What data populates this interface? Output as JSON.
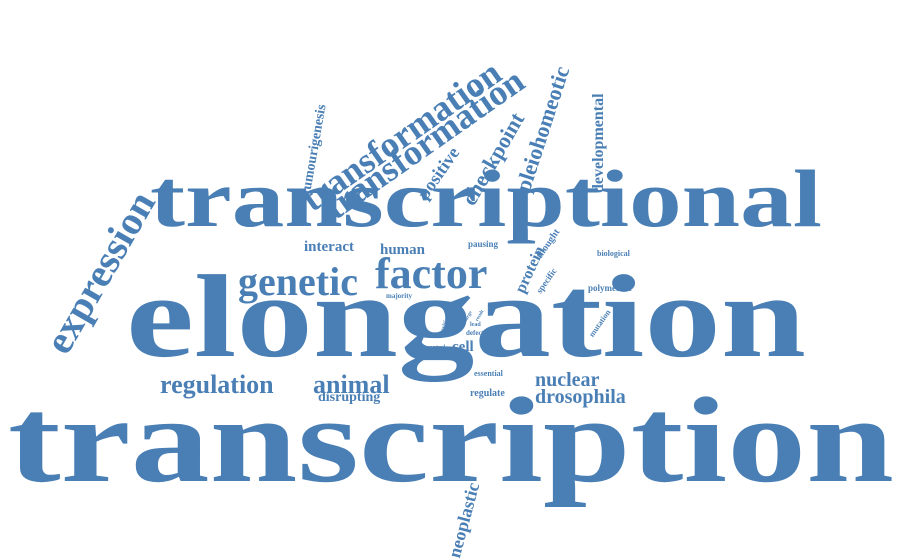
{
  "color": "#4a7fb5",
  "words": [
    {
      "text": "transcription",
      "size": 122,
      "rotate": 0
    },
    {
      "text": "elongation",
      "size": 118,
      "rotate": 0
    },
    {
      "text": "transcriptional",
      "size": 82,
      "rotate": 0
    },
    {
      "text": "factor",
      "size": 44,
      "rotate": 0
    },
    {
      "text": "genetic",
      "size": 40,
      "rotate": 0
    },
    {
      "text": "expression",
      "size": 40,
      "rotate": -60
    },
    {
      "text": "transformation",
      "size": 36,
      "rotate": -35
    },
    {
      "text": "transformation",
      "size": 36,
      "rotate": -35
    },
    {
      "text": "regulation",
      "size": 26,
      "rotate": 0
    },
    {
      "text": "animal",
      "size": 26,
      "rotate": 0
    },
    {
      "text": "nuclear",
      "size": 20,
      "rotate": 0
    },
    {
      "text": "drosophila",
      "size": 20,
      "rotate": 0
    },
    {
      "text": "checkpoint",
      "size": 22,
      "rotate": -60
    },
    {
      "text": "pleiohomeotic",
      "size": 22,
      "rotate": -72
    },
    {
      "text": "positive",
      "size": 18,
      "rotate": -55
    },
    {
      "text": "developmental",
      "size": 16,
      "rotate": -90
    },
    {
      "text": "tumourigenesis",
      "size": 14,
      "rotate": -80
    },
    {
      "text": "neoplastic",
      "size": 18,
      "rotate": -75
    },
    {
      "text": "interact",
      "size": 15,
      "rotate": 0
    },
    {
      "text": "human",
      "size": 15,
      "rotate": 0
    },
    {
      "text": "disrupting",
      "size": 14,
      "rotate": 0
    },
    {
      "text": "protein",
      "size": 16,
      "rotate": -65
    },
    {
      "text": "cell",
      "size": 15,
      "rotate": 0
    },
    {
      "text": "regulate",
      "size": 10,
      "rotate": 0
    },
    {
      "text": "essential",
      "size": 8,
      "rotate": 0
    },
    {
      "text": "polymerase",
      "size": 9,
      "rotate": 0
    },
    {
      "text": "biological",
      "size": 8,
      "rotate": 0
    },
    {
      "text": "mutation",
      "size": 8,
      "rotate": -55
    },
    {
      "text": "specific",
      "size": 9,
      "rotate": -55
    },
    {
      "text": "thought",
      "size": 10,
      "rotate": -55
    },
    {
      "text": "pausing",
      "size": 9,
      "rotate": 0
    },
    {
      "text": "majority",
      "size": 7,
      "rotate": 0
    },
    {
      "text": "critical",
      "size": 6,
      "rotate": -70
    },
    {
      "text": "lead",
      "size": 6,
      "rotate": 0
    },
    {
      "text": "defect",
      "size": 7,
      "rotate": 0
    },
    {
      "text": "control",
      "size": 6,
      "rotate": 0
    },
    {
      "text": "large",
      "size": 5,
      "rotate": -60
    },
    {
      "text": "result",
      "size": 5,
      "rotate": -60
    }
  ]
}
